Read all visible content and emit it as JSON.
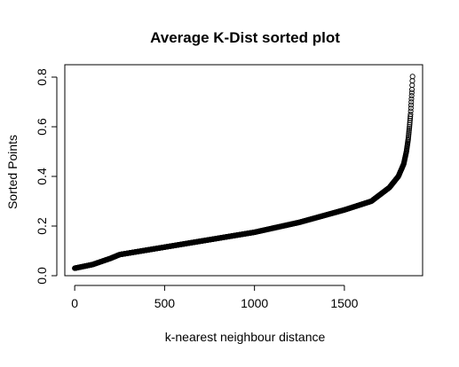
{
  "chart_data": {
    "type": "scatter",
    "title": "Average K-Dist sorted plot",
    "xlabel": "k-nearest neighbour distance",
    "ylabel": "Sorted Points",
    "xlim": [
      -55,
      1935
    ],
    "ylim": [
      0.0,
      0.85
    ],
    "x_ticks": [
      0,
      500,
      1000,
      1500
    ],
    "y_ticks": [
      0.0,
      0.2,
      0.4,
      0.6,
      0.8
    ],
    "x_tick_labels": [
      "0",
      "500",
      "1000",
      "1500"
    ],
    "y_tick_labels": [
      "0.0",
      "0.2",
      "0.4",
      "0.6",
      "0.8"
    ],
    "grid": false,
    "marker": "open-circle",
    "marker_color": "#000000",
    "n_points": 1880,
    "curve_points": [
      {
        "x": 0,
        "y": 0.03
      },
      {
        "x": 100,
        "y": 0.045
      },
      {
        "x": 200,
        "y": 0.07
      },
      {
        "x": 250,
        "y": 0.085
      },
      {
        "x": 500,
        "y": 0.115
      },
      {
        "x": 750,
        "y": 0.145
      },
      {
        "x": 1000,
        "y": 0.175
      },
      {
        "x": 1250,
        "y": 0.215
      },
      {
        "x": 1500,
        "y": 0.265
      },
      {
        "x": 1650,
        "y": 0.3
      },
      {
        "x": 1750,
        "y": 0.355
      },
      {
        "x": 1800,
        "y": 0.4
      },
      {
        "x": 1830,
        "y": 0.45
      },
      {
        "x": 1845,
        "y": 0.5
      },
      {
        "x": 1855,
        "y": 0.55
      },
      {
        "x": 1862,
        "y": 0.6
      },
      {
        "x": 1868,
        "y": 0.65
      },
      {
        "x": 1872,
        "y": 0.7
      },
      {
        "x": 1876,
        "y": 0.75
      },
      {
        "x": 1880,
        "y": 0.82
      }
    ]
  }
}
